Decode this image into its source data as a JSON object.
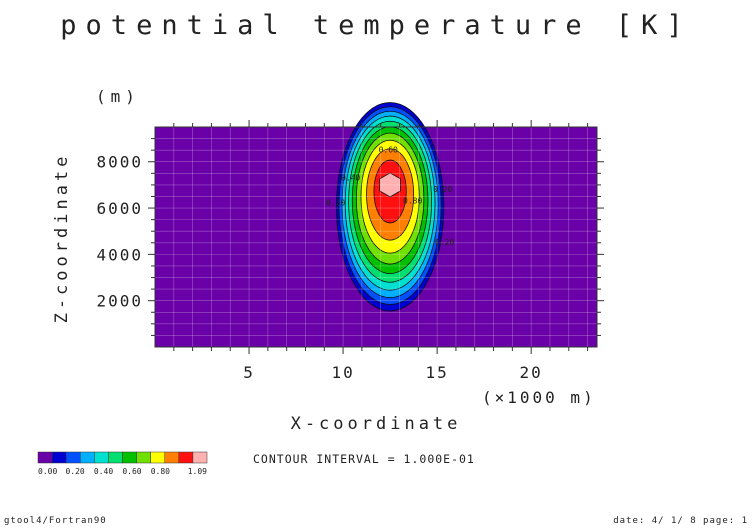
{
  "chart_data": {
    "type": "heatmap",
    "title": "potential temperature [K]",
    "xlabel": "X-coordinate",
    "xunit": "(×1000 m)",
    "ylabel": "Z-coordinate",
    "yunit": "(m)",
    "xlim": [
      0,
      23.5
    ],
    "ylim": [
      0,
      9500
    ],
    "xticks": [
      "5",
      "10",
      "15",
      "20"
    ],
    "yticks": [
      "2000",
      "4000",
      "6000",
      "8000"
    ],
    "grid": true,
    "field": {
      "shape": "elliptical warm bubble",
      "center_x": 12.5,
      "center_z": 7000,
      "radius_x": 3.0,
      "radius_z": 4500,
      "max_value": 1.09,
      "background_value": 0.0
    },
    "levels": [
      0.0,
      0.1,
      0.2,
      0.3,
      0.4,
      0.5,
      0.6,
      0.7,
      0.8,
      0.9,
      1.0,
      1.09
    ],
    "colors": [
      "#6a00a8",
      "#0000d0",
      "#0050ff",
      "#00b0ff",
      "#00e0d0",
      "#00e070",
      "#00c000",
      "#70e000",
      "#ffff00",
      "#ff8000",
      "#ff1010",
      "#ffb0b0"
    ],
    "contour_labels": [
      "0.20",
      "0.40",
      "0.60",
      "0.80",
      "0.20",
      "0.20"
    ],
    "colorbar_labels": [
      "0.00",
      "0.20",
      "0.40",
      "0.60",
      "0.80",
      "1.09"
    ],
    "contour_interval": "CONTOUR INTERVAL = 1.000E-01"
  },
  "footer": {
    "left": "gtool4/Fortran90",
    "right": "date: 4/ 1/ 8 page: 1"
  }
}
